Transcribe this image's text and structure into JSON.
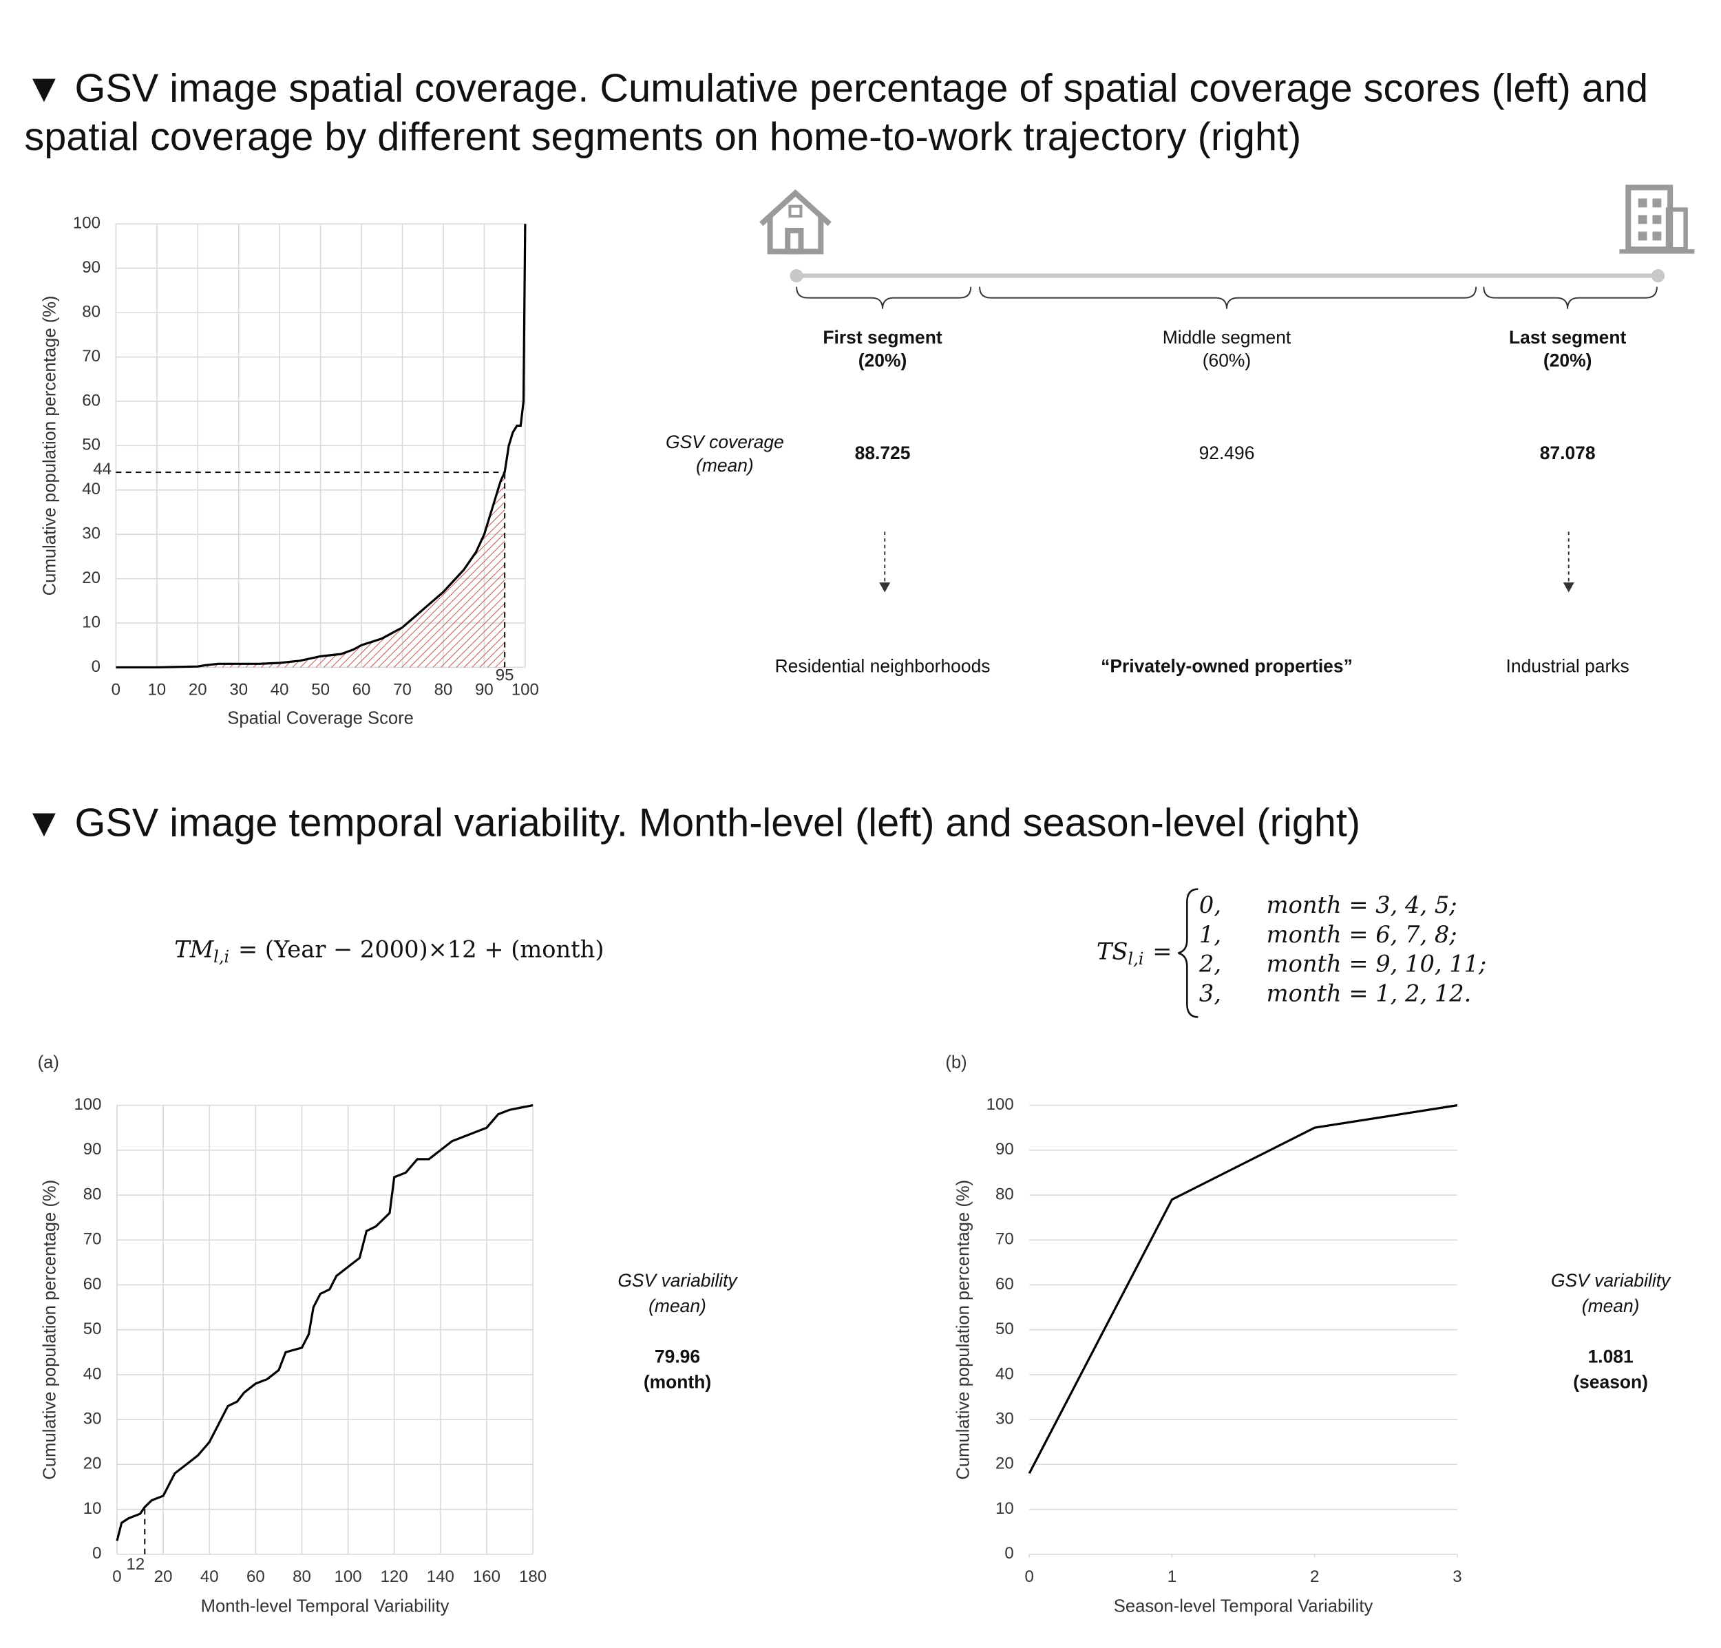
{
  "sections": [
    {
      "lines": [
        "▼ GSV image spatial coverage. Cumulative percentage of spatial coverage scores (left) and",
        "spatial coverage by different segments on home-to-work trajectory (right)"
      ]
    },
    {
      "lines": [
        "▼ GSV image temporal variability. Month-level (left) and season-level (right)"
      ]
    }
  ],
  "diagram": {
    "row_label": [
      "GSV coverage",
      "(mean)"
    ],
    "segments": [
      {
        "name": "First segment",
        "share": "(20%)",
        "coverage": 88.725,
        "area": "Residential neighborhoods",
        "name_bold": true,
        "area_bold": false
      },
      {
        "name": "Middle segment",
        "share": "(60%)",
        "coverage": 92.496,
        "area": "“Privately-owned properties”",
        "name_bold": false,
        "area_bold": true
      },
      {
        "name": "Last segment",
        "share": "(20%)",
        "coverage": 87.078,
        "area": "Industrial parks",
        "name_bold": true,
        "area_bold": false
      }
    ]
  },
  "formulas": [
    {
      "lhs": "TM",
      "sub": "l,i",
      "rhs": "= (Year − 2000)×12 + (month)"
    },
    {
      "lhs": "TS",
      "sub": "l,i",
      "rhs": "=",
      "cases": [
        [
          "0,",
          "month = 3, 4, 5;"
        ],
        [
          "1,",
          "month = 6, 7, 8;"
        ],
        [
          "2,",
          "month = 9, 10, 11;"
        ],
        [
          "3,",
          "month = 1, 2, 12."
        ]
      ]
    }
  ],
  "chart_data": [
    {
      "type": "line",
      "color": "#000000",
      "grid": "both",
      "x_label": "Spatial Coverage Score",
      "y_label": "Cumulative population percentage (%)",
      "x": [
        0,
        10,
        20,
        22,
        25,
        35,
        40,
        45,
        50,
        55,
        58,
        60,
        65,
        70,
        75,
        80,
        85,
        88,
        90,
        92,
        94,
        95,
        96,
        97,
        98,
        98.9,
        99.6,
        100
      ],
      "y": [
        0,
        0,
        0.2,
        0.5,
        0.8,
        0.8,
        1,
        1.5,
        2.5,
        3,
        4,
        5,
        6.5,
        9,
        13,
        17,
        22,
        26,
        30,
        36,
        42,
        44,
        50,
        53,
        54.5,
        54.5,
        60,
        100
      ],
      "xlim": [
        0,
        100
      ],
      "ylim": [
        0,
        100
      ],
      "xticks": [
        0,
        10,
        20,
        30,
        40,
        50,
        60,
        70,
        80,
        90,
        100
      ],
      "yticks": [
        0,
        10,
        20,
        30,
        40,
        50,
        60,
        70,
        80,
        90,
        100
      ],
      "reference_x": 95,
      "reference_y": 44,
      "shade_color": "#c0504d"
    },
    {
      "type": "line",
      "color": "#000000",
      "grid": "both",
      "panel": "(a)",
      "x_label": "Month-level Temporal Variability",
      "y_label": "Cumulative population percentage (%)",
      "x": [
        0,
        2,
        5,
        10,
        12,
        15,
        20,
        25,
        30,
        35,
        40,
        45,
        48,
        52,
        55,
        60,
        65,
        70,
        73,
        80,
        83,
        85,
        88,
        92,
        95,
        100,
        105,
        108,
        112,
        118,
        120,
        125,
        130,
        135,
        140,
        145,
        150,
        155,
        160,
        165,
        170,
        175,
        180
      ],
      "y": [
        3,
        7,
        8,
        9,
        10.5,
        12,
        13,
        18,
        20,
        22,
        25,
        30,
        33,
        34,
        36,
        38,
        39,
        41,
        45,
        46,
        49,
        55,
        58,
        59,
        62,
        64,
        66,
        72,
        73,
        76,
        84,
        85,
        88,
        88,
        90,
        92,
        93,
        94,
        95,
        98,
        99,
        99.5,
        100
      ],
      "xlim": [
        0,
        180
      ],
      "ylim": [
        0,
        100
      ],
      "xticks": [
        0,
        20,
        40,
        60,
        80,
        100,
        120,
        140,
        160,
        180
      ],
      "yticks": [
        0,
        10,
        20,
        30,
        40,
        50,
        60,
        70,
        80,
        90,
        100
      ],
      "reference_x": 12,
      "note_label": [
        "GSV variability",
        "(mean)"
      ],
      "note_value": [
        "79.96",
        "(month)"
      ]
    },
    {
      "type": "line",
      "color": "#000000",
      "grid": "y",
      "panel": "(b)",
      "x_label": "Season-level Temporal Variability",
      "y_label": "Cumulative population percentage (%)",
      "x": [
        0,
        1,
        2,
        3
      ],
      "y": [
        18,
        79,
        95,
        100
      ],
      "xlim": [
        0,
        3
      ],
      "ylim": [
        0,
        100
      ],
      "xticks": [
        0,
        1,
        2,
        3
      ],
      "yticks": [
        0,
        10,
        20,
        30,
        40,
        50,
        60,
        70,
        80,
        90,
        100
      ],
      "note_label": [
        "GSV variability",
        "(mean)"
      ],
      "note_value": [
        "1.081",
        "(season)"
      ]
    }
  ]
}
